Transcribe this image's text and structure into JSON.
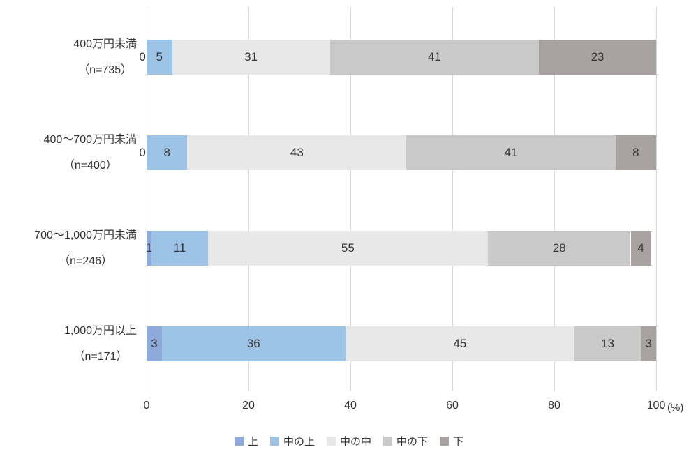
{
  "chart_data": {
    "type": "bar",
    "orientation": "horizontal",
    "stacked": true,
    "title": "",
    "xlabel": "",
    "ylabel": "",
    "unit_label": "(%)",
    "xlim": [
      0,
      100
    ],
    "x_ticks": [
      0,
      20,
      40,
      60,
      80,
      100
    ],
    "grid": true,
    "legend_position": "bottom",
    "categories": [
      {
        "label": "400万円未満",
        "n_label": "（n=735）"
      },
      {
        "label": "400〜700万円未満",
        "n_label": "（n=400）"
      },
      {
        "label": "700〜1,000万円未満",
        "n_label": "（n=246）"
      },
      {
        "label": "1,000万円以上",
        "n_label": "（n=171）"
      }
    ],
    "series": [
      {
        "name": "上",
        "color": "#8eaadb",
        "values": [
          0,
          0,
          1,
          3
        ]
      },
      {
        "name": "中の上",
        "color": "#9dc3e6",
        "values": [
          5,
          8,
          11,
          36
        ]
      },
      {
        "name": "中の中",
        "color": "#e9e8e8",
        "values": [
          31,
          43,
          55,
          45
        ]
      },
      {
        "name": "中の下",
        "color": "#c9c9c9",
        "values": [
          41,
          41,
          28,
          13
        ]
      },
      {
        "name": "下",
        "color": "#a8a2a1",
        "values": [
          23,
          8,
          4,
          3
        ]
      }
    ]
  },
  "layout_colors": {
    "gridline": "#d9d9d9",
    "axis": "#c3c3c3",
    "text": "#333333"
  }
}
